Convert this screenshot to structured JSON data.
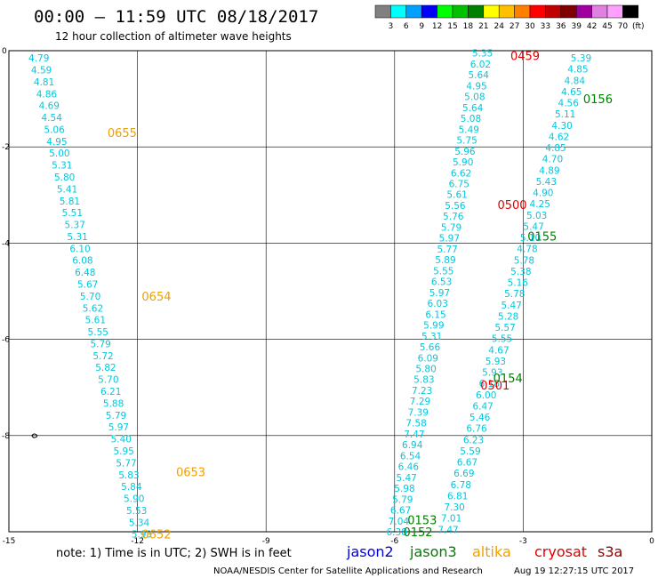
{
  "header": {
    "time_range": "00:00 – 11:59 UTC 08/18/2017",
    "subtitle": "12 hour collection of altimeter wave heights"
  },
  "legend": {
    "unit": "(ft)",
    "bins": [
      {
        "label": "3",
        "color": "#808080"
      },
      {
        "label": "6",
        "color": "#00ffff"
      },
      {
        "label": "9",
        "color": "#00a0ff"
      },
      {
        "label": "12",
        "color": "#0000ff"
      },
      {
        "label": "15",
        "color": "#00ff00"
      },
      {
        "label": "18",
        "color": "#00c000"
      },
      {
        "label": "21",
        "color": "#008000"
      },
      {
        "label": "24",
        "color": "#ffff00"
      },
      {
        "label": "27",
        "color": "#ffc000"
      },
      {
        "label": "30",
        "color": "#ff8000"
      },
      {
        "label": "33",
        "color": "#ff0000"
      },
      {
        "label": "36",
        "color": "#c00000"
      },
      {
        "label": "39",
        "color": "#800000"
      },
      {
        "label": "42",
        "color": "#a000a0"
      },
      {
        "label": "45",
        "color": "#e080e0"
      },
      {
        "label": "70",
        "color": "#ffa0ff"
      },
      {
        "label": "",
        "color": "#000000"
      }
    ]
  },
  "map": {
    "lon_range": [
      -15,
      0
    ],
    "lat_range": [
      -10,
      0
    ],
    "x_ticks": [
      "-15",
      "-12",
      "-9",
      "-6",
      "-3",
      "0"
    ],
    "y_ticks": [
      "0",
      "-2",
      "-4",
      "-6",
      "-8",
      "-10"
    ],
    "island_marker": {
      "lon": -14.4,
      "lat": -8.0
    },
    "track_color": "#00e0e8",
    "track_font_color": "#00c8dc",
    "tracks": [
      {
        "name": "west",
        "start": [
          -14.3,
          -0.15
        ],
        "end": [
          -11.9,
          -10.05
        ],
        "values": [
          "4.79",
          "4.59",
          "4.81",
          "4.86",
          "4.69",
          "4.54",
          "5.06",
          "4.95",
          "5.00",
          "5.31",
          "5.80",
          "5.41",
          "5.81",
          "5.51",
          "5.37",
          "5.31",
          "6.10",
          "6.08",
          "6.48",
          "5.67",
          "5.70",
          "5.62",
          "5.61",
          "5.55",
          "5.79",
          "5.72",
          "5.82",
          "5.70",
          "6.21",
          "5.88",
          "5.79",
          "5.97",
          "5.40",
          "5.95",
          "5.77",
          "5.83",
          "5.84",
          "5.90",
          "5.53",
          "5.34",
          "5.93"
        ]
      },
      {
        "name": "center",
        "start": [
          -3.95,
          -0.05
        ],
        "end": [
          -5.95,
          -10.0
        ],
        "values": [
          "5.35",
          "6.02",
          "5.64",
          "4.95",
          "5.08",
          "5.64",
          "5.08",
          "5.49",
          "5.75",
          "5.96",
          "5.90",
          "6.62",
          "6.75",
          "5.61",
          "5.56",
          "5.76",
          "5.79",
          "5.97",
          "5.77",
          "5.89",
          "5.55",
          "6.53",
          "5.97",
          "6.03",
          "6.15",
          "5.99",
          "5.31",
          "5.66",
          "6.09",
          "5.80",
          "5.83",
          "7.23",
          "7.29",
          "7.39",
          "7.58",
          "7.47",
          "6.94",
          "6.54",
          "6.46",
          "5.47",
          "5.98",
          "5.79",
          "6.67",
          "7.04",
          "6.38"
        ]
      },
      {
        "name": "east",
        "start": [
          -1.65,
          -0.15
        ],
        "end": [
          -4.75,
          -9.95
        ],
        "values": [
          "5.39",
          "4.85",
          "4.84",
          "4.65",
          "4.56",
          "5.11",
          "4.30",
          "4.62",
          "4.85",
          "4.70",
          "4.89",
          "5.43",
          "4.90",
          "4.25",
          "5.03",
          "5.47",
          "5.10",
          "4.78",
          "5.78",
          "5.38",
          "5.16",
          "5.78",
          "5.47",
          "5.28",
          "5.57",
          "5.55",
          "4.67",
          "5.93",
          "5.93",
          "6.18",
          "6.00",
          "6.47",
          "5.46",
          "6.76",
          "6.23",
          "5.59",
          "6.67",
          "6.69",
          "6.78",
          "6.81",
          "7.30",
          "7.01",
          "7.47"
        ]
      }
    ],
    "pass_labels": [
      {
        "text": "0655",
        "lon": -12.7,
        "lat": -1.7,
        "color": "#f0a000"
      },
      {
        "text": "0654",
        "lon": -11.9,
        "lat": -5.1,
        "color": "#f0a000"
      },
      {
        "text": "0653",
        "lon": -11.1,
        "lat": -8.75,
        "color": "#f0a000"
      },
      {
        "text": "0652",
        "lon": -11.9,
        "lat": -10.05,
        "color": "#f0a000"
      },
      {
        "text": "0459",
        "lon": -3.3,
        "lat": -0.1,
        "color": "#e00000"
      },
      {
        "text": "0500",
        "lon": -3.6,
        "lat": -3.2,
        "color": "#e00000"
      },
      {
        "text": "0501",
        "lon": -4.0,
        "lat": -6.95,
        "color": "#e00000"
      },
      {
        "text": "0156",
        "lon": -1.6,
        "lat": -1.0,
        "color": "#008000"
      },
      {
        "text": "0155",
        "lon": -2.9,
        "lat": -3.85,
        "color": "#008000"
      },
      {
        "text": "0154",
        "lon": -3.7,
        "lat": -6.8,
        "color": "#008000"
      },
      {
        "text": "0153",
        "lon": -5.7,
        "lat": -9.75,
        "color": "#008000"
      },
      {
        "text": "0152",
        "lon": -5.8,
        "lat": -10.0,
        "color": "#008000"
      }
    ]
  },
  "footer": {
    "note": "note: 1) Time is in UTC; 2) SWH is in feet",
    "satellites": [
      {
        "name": "jason2",
        "color": "#0000d0"
      },
      {
        "name": "jason3",
        "color": "#008000"
      },
      {
        "name": "altika",
        "color": "#f0a000"
      },
      {
        "name": "cryosat",
        "color": "#e00000"
      },
      {
        "name": "s3a",
        "color": "#8b0000"
      }
    ],
    "credit": "NOAA/NESDIS Center for Satellite Applications and Research",
    "timestamp": "Aug 19 12:27:15 UTC 2017"
  }
}
